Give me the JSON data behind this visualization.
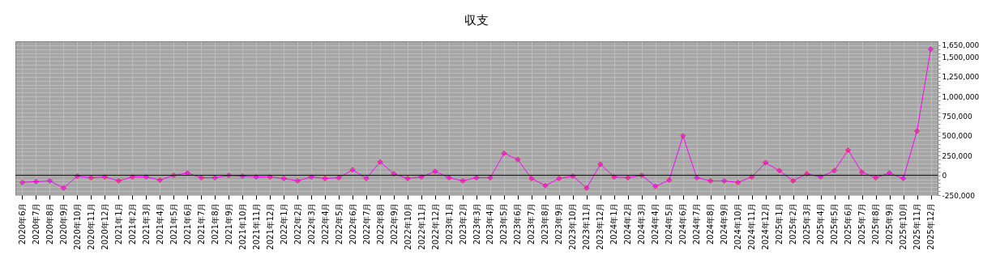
{
  "chart_data": {
    "type": "line",
    "title": "収支",
    "categories": [
      "2020年6月",
      "2020年7月",
      "2020年8月",
      "2020年9月",
      "2020年10月",
      "2020年11月",
      "2020年12月",
      "2021年1月",
      "2021年2月",
      "2021年3月",
      "2021年4月",
      "2021年5月",
      "2021年6月",
      "2021年7月",
      "2021年8月",
      "2021年9月",
      "2021年10月",
      "2021年11月",
      "2021年12月",
      "2022年1月",
      "2022年2月",
      "2022年3月",
      "2022年4月",
      "2022年5月",
      "2022年6月",
      "2022年7月",
      "2022年8月",
      "2022年9月",
      "2022年10月",
      "2022年11月",
      "2022年12月",
      "2023年1月",
      "2023年2月",
      "2023年3月",
      "2023年4月",
      "2023年5月",
      "2023年6月",
      "2023年7月",
      "2023年8月",
      "2023年9月",
      "2023年10月",
      "2023年11月",
      "2023年12月",
      "2024年1月",
      "2024年2月",
      "2024年3月",
      "2024年4月",
      "2024年5月",
      "2024年6月",
      "2024年7月",
      "2024年8月",
      "2024年9月",
      "2024年10月",
      "2024年11月",
      "2024年12月",
      "2025年1月",
      "2025年2月",
      "2025年3月",
      "2025年4月",
      "2025年5月",
      "2025年6月",
      "2025年7月",
      "2025年8月",
      "2025年9月",
      "2025年10月",
      "2025年11月",
      "2025年12月"
    ],
    "series": [
      {
        "color": "#ff00ff",
        "values": [
          -90000,
          -80000,
          -70000,
          -160000,
          -10000,
          -30000,
          -20000,
          -70000,
          -20000,
          -20000,
          -60000,
          0,
          30000,
          -30000,
          -30000,
          0,
          -10000,
          -20000,
          -20000,
          -40000,
          -70000,
          -20000,
          -40000,
          -30000,
          70000,
          -40000,
          170000,
          20000,
          -40000,
          -20000,
          50000,
          -30000,
          -70000,
          -30000,
          -30000,
          280000,
          200000,
          -40000,
          -130000,
          -40000,
          -10000,
          -160000,
          140000,
          -20000,
          -30000,
          0,
          -140000,
          -60000,
          500000,
          -30000,
          -70000,
          -70000,
          -90000,
          -20000,
          160000,
          60000,
          -70000,
          20000,
          -20000,
          60000,
          320000,
          40000,
          -30000,
          30000,
          -40000,
          560000,
          1600000
        ]
      }
    ],
    "ylim": [
      -250000,
      1700000
    ],
    "yticks": [
      {
        "value": -250000,
        "label": "-250,000"
      },
      {
        "value": -200000,
        "label": null
      },
      {
        "value": -150000,
        "label": null
      },
      {
        "value": -100000,
        "label": null
      },
      {
        "value": -50000,
        "label": null
      },
      {
        "value": 0,
        "label": "0"
      },
      {
        "value": 50000,
        "label": null
      },
      {
        "value": 100000,
        "label": null
      },
      {
        "value": 150000,
        "label": null
      },
      {
        "value": 200000,
        "label": null
      },
      {
        "value": 250000,
        "label": "250,000"
      },
      {
        "value": 300000,
        "label": null
      },
      {
        "value": 350000,
        "label": null
      },
      {
        "value": 400000,
        "label": null
      },
      {
        "value": 450000,
        "label": null
      },
      {
        "value": 500000,
        "label": "500,000"
      },
      {
        "value": 550000,
        "label": null
      },
      {
        "value": 600000,
        "label": null
      },
      {
        "value": 650000,
        "label": null
      },
      {
        "value": 700000,
        "label": null
      },
      {
        "value": 750000,
        "label": "750,000"
      },
      {
        "value": 800000,
        "label": null
      },
      {
        "value": 850000,
        "label": null
      },
      {
        "value": 900000,
        "label": null
      },
      {
        "value": 950000,
        "label": null
      },
      {
        "value": 1000000,
        "label": "1,000,000"
      },
      {
        "value": 1050000,
        "label": null
      },
      {
        "value": 1100000,
        "label": null
      },
      {
        "value": 1150000,
        "label": null
      },
      {
        "value": 1200000,
        "label": null
      },
      {
        "value": 1250000,
        "label": "1,250,000"
      },
      {
        "value": 1300000,
        "label": null
      },
      {
        "value": 1350000,
        "label": null
      },
      {
        "value": 1400000,
        "label": null
      },
      {
        "value": 1450000,
        "label": null
      },
      {
        "value": 1500000,
        "label": "1,500,000"
      },
      {
        "value": 1550000,
        "label": null
      },
      {
        "value": 1600000,
        "label": null
      },
      {
        "value": 1650000,
        "label": "1,650,000"
      }
    ],
    "ref_lines": [
      {
        "axis": "y",
        "value": 0,
        "color": "#000000"
      }
    ],
    "grid": true,
    "legend": false,
    "marker": "diamond",
    "line_style": "solid"
  }
}
